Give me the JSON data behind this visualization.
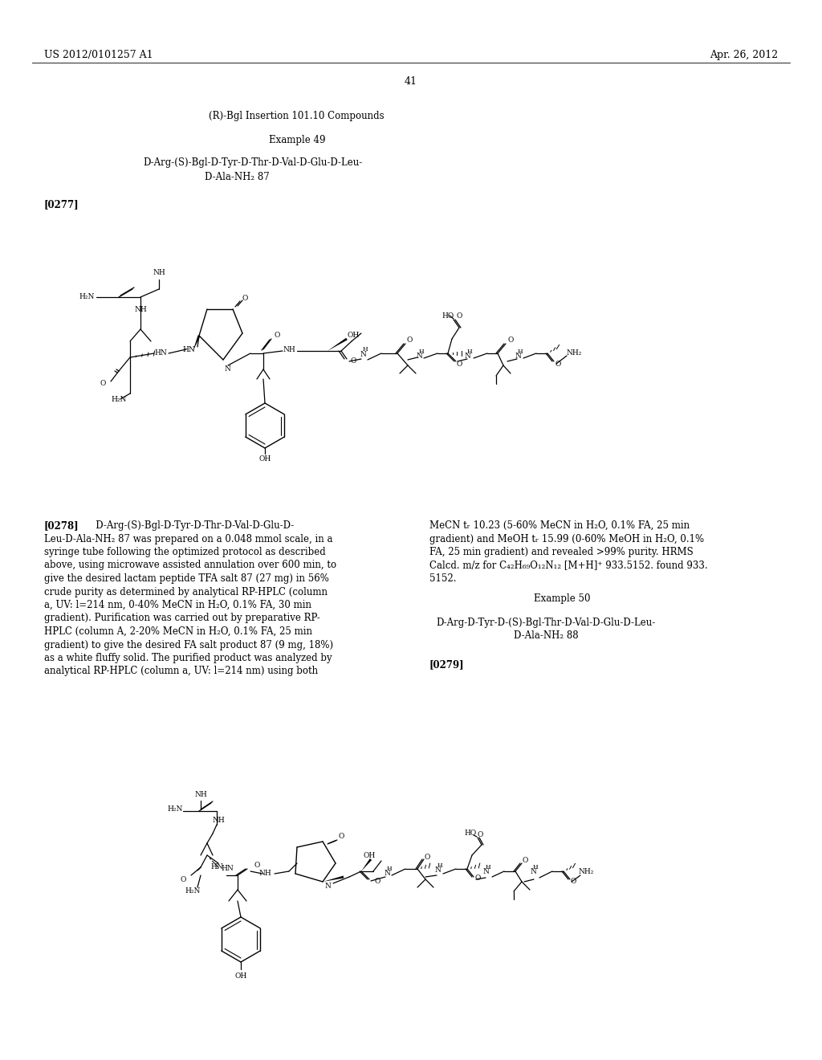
{
  "page_number": "41",
  "patent_number": "US 2012/0101257 A1",
  "patent_date": "Apr. 26, 2012",
  "background_color": "#ffffff",
  "text_color": "#000000",
  "section_heading": "(R)-Bgl Insertion 101.10 Compounds",
  "example49_title": "Example 49",
  "para277": "[0277]",
  "para279": "[0279]",
  "left_col_lines": [
    "[0278]   D-Arg-(S)-Bgl-D-Tyr-D-Thr-D-Val-D-Glu-D-",
    "Leu-D-Ala-NH₂ 87 was prepared on a 0.048 mmol scale, in a",
    "syringe tube following the optimized protocol as described",
    "above, using microwave assisted annulation over 600 min, to",
    "give the desired lactam peptide TFA salt 87 (27 mg) in 56%",
    "crude purity as determined by analytical RP-HPLC (column",
    "a, UV: l=214 nm, 0-40% MeCN in H₂O, 0.1% FA, 30 min",
    "gradient). Purification was carried out by preparative RP-",
    "HPLC (column A, 2-20% MeCN in H₂O, 0.1% FA, 25 min",
    "gradient) to give the desired FA salt product 87 (9 mg, 18%)",
    "as a white fluffy solid. The purified product was analyzed by",
    "analytical RP-HPLC (column a, UV: l=214 nm) using both"
  ],
  "right_col_lines": [
    "MeCN tᵣ 10.23 (5-60% MeCN in H₂O, 0.1% FA, 25 min",
    "gradient) and MeOH tᵣ 15.99 (0-60% MeOH in H₂O, 0.1%",
    "FA, 25 min gradient) and revealed >99% purity. HRMS",
    "Calcd. m/z for C₄₂H₆₉O₁₂N₁₂ [M+H]⁺ 933.5152. found 933.",
    "5152."
  ],
  "example50_title": "Example 50",
  "example50_line1": "D-Arg-D-Tyr-D-(S)-Bgl-Thr-D-Val-D-Glu-D-Leu-",
  "example50_line2": "D-Ala-NH₂ 88",
  "font_size_header": 9,
  "font_size_body": 8.5
}
